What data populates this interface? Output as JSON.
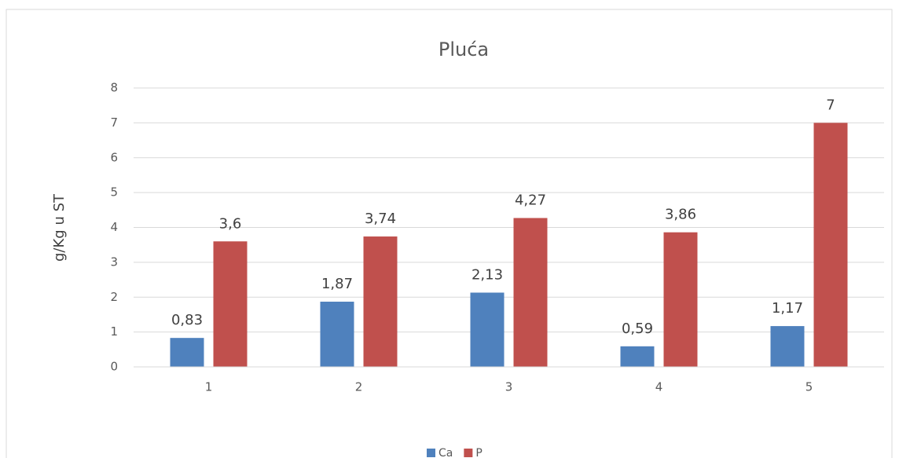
{
  "chart_data": {
    "type": "bar",
    "title": "Pluća",
    "y_label": "g/Kg u ST",
    "categories": [
      "1",
      "2",
      "3",
      "4",
      "5"
    ],
    "series": [
      {
        "name": "Ca",
        "color": "#4f81bd",
        "values": [
          0.83,
          1.87,
          2.13,
          0.59,
          1.17
        ],
        "value_labels": [
          "0,83",
          "1,87",
          "2,13",
          "0,59",
          "1,17"
        ]
      },
      {
        "name": "P",
        "color": "#c0504d",
        "values": [
          3.6,
          3.74,
          4.27,
          3.86,
          7
        ],
        "value_labels": [
          "3,6",
          "3,74",
          "4,27",
          "3,86",
          "7"
        ]
      }
    ],
    "ylim": [
      0,
      8
    ],
    "yticks": [
      0,
      1,
      2,
      3,
      4,
      5,
      6,
      7,
      8
    ],
    "grid": true,
    "legend": "bottom"
  }
}
